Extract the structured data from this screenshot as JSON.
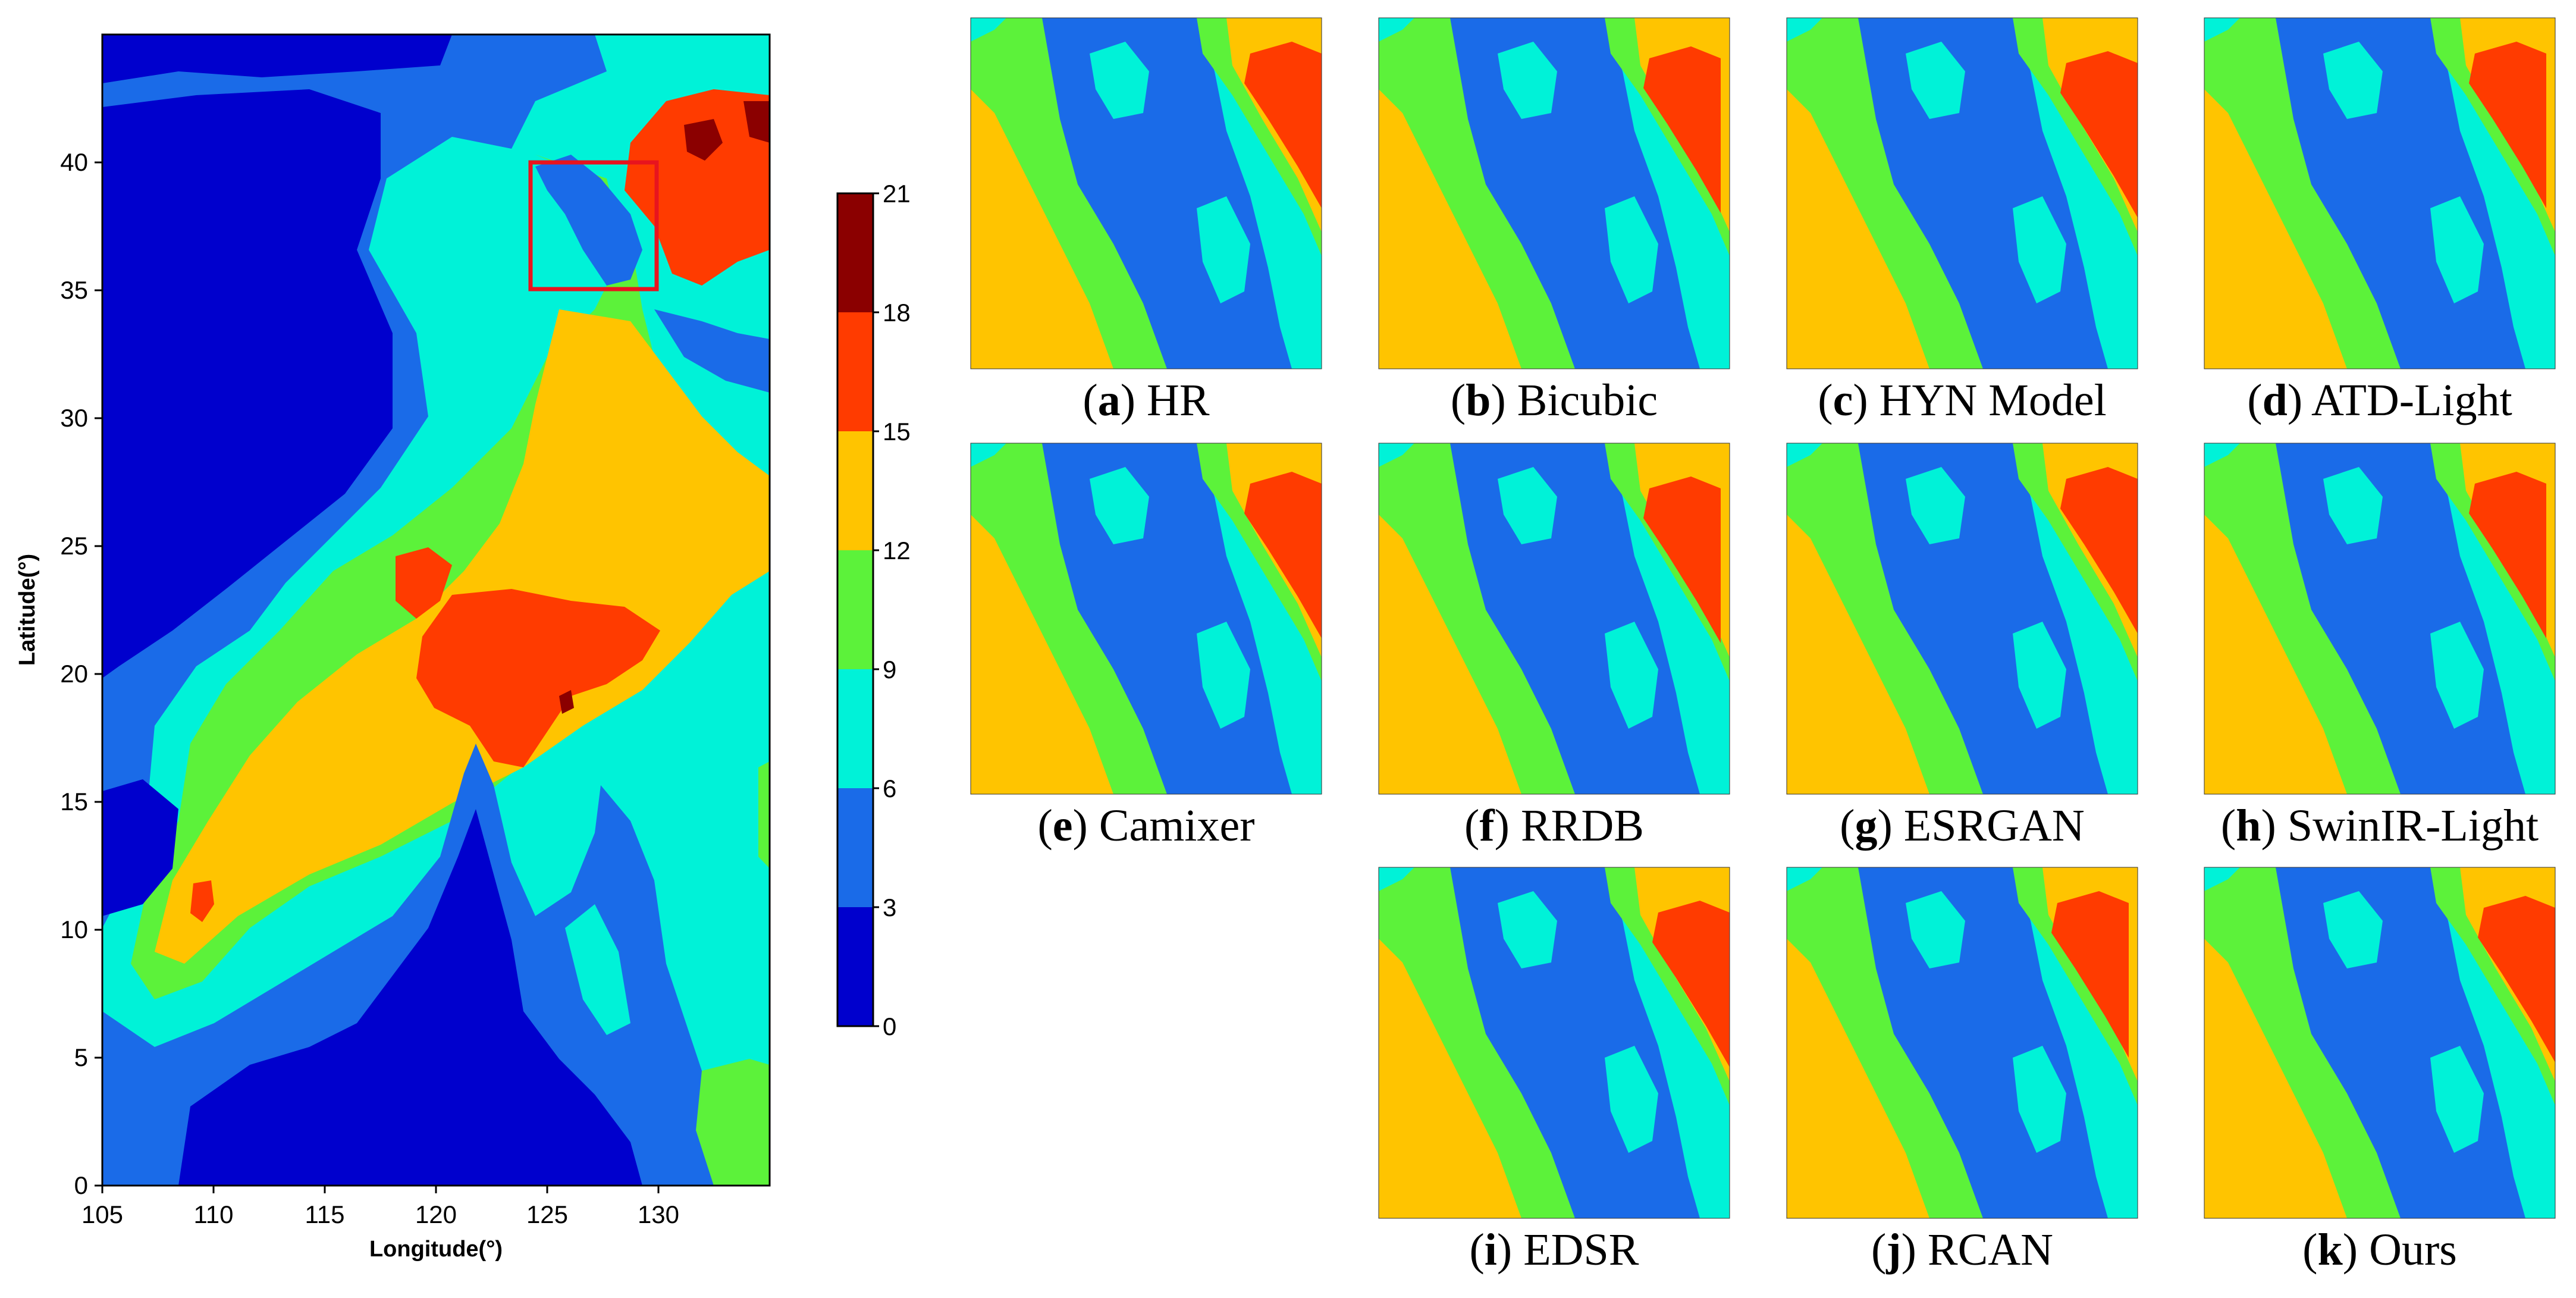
{
  "colors": {
    "c0_3": "#0000CD",
    "c3_6": "#1A6BE8",
    "c6_9": "#00F2D8",
    "c9_12": "#5CF23A",
    "c12_15": "#FFC400",
    "c15_18": "#FF3B00",
    "c18_21": "#8B0000",
    "box": "#E8141E"
  },
  "chart_data": {
    "type": "heatmap",
    "title": "",
    "xlabel": "Longitude(°)",
    "ylabel": "Latitude(°)",
    "xlim": [
      105,
      135
    ],
    "ylim": [
      0,
      45
    ],
    "x_ticks": [
      "105",
      "110",
      "115",
      "120",
      "125",
      "130"
    ],
    "y_ticks": [
      "0",
      "5",
      "10",
      "15",
      "20",
      "25",
      "30",
      "35",
      "40"
    ],
    "colorbar": {
      "range": [
        0,
        21
      ],
      "ticks": [
        "0",
        "3",
        "6",
        "9",
        "12",
        "15",
        "18",
        "21"
      ],
      "levels": [
        [
          0,
          3
        ],
        [
          3,
          6
        ],
        [
          6,
          9
        ],
        [
          9,
          12
        ],
        [
          12,
          15
        ],
        [
          15,
          18
        ],
        [
          18,
          21
        ]
      ]
    },
    "highlight_box": {
      "lon": [
        124,
        130
      ],
      "lat": [
        35,
        40
      ]
    },
    "panels": [
      {
        "letter": "a",
        "label": "HR"
      },
      {
        "letter": "b",
        "label": "Bicubic"
      },
      {
        "letter": "c",
        "label": "HYN Model"
      },
      {
        "letter": "d",
        "label": "ATD-Light"
      },
      {
        "letter": "e",
        "label": "Camixer"
      },
      {
        "letter": "f",
        "label": "RRDB"
      },
      {
        "letter": "g",
        "label": "ESRGAN"
      },
      {
        "letter": "h",
        "label": "SwinIR-Light"
      },
      {
        "letter": "i",
        "label": "EDSR"
      },
      {
        "letter": "j",
        "label": "RCAN"
      },
      {
        "letter": "k",
        "label": "Ours"
      }
    ]
  }
}
